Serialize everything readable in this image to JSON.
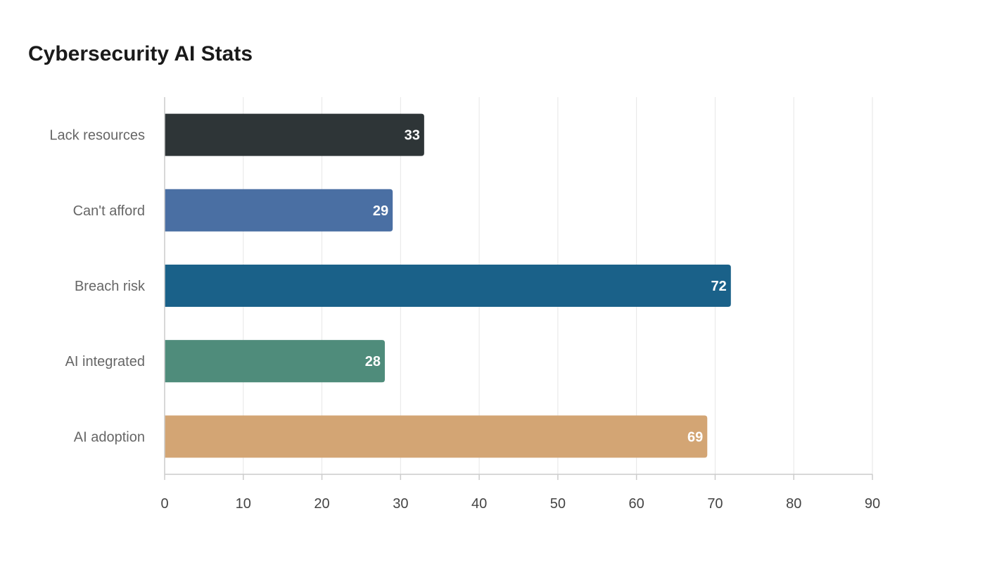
{
  "chart_data": {
    "type": "bar",
    "orientation": "horizontal",
    "title": "Cybersecurity AI Stats",
    "xlabel": "",
    "ylabel": "",
    "categories": [
      "Lack resources",
      "Can't afford",
      "Breach risk",
      "AI integrated",
      "AI adoption"
    ],
    "values": [
      33,
      29,
      72,
      28,
      69
    ],
    "colors": [
      "#2e3537",
      "#4a6fa3",
      "#1a6189",
      "#4f8c7b",
      "#d3a574"
    ],
    "xlim": [
      0,
      90
    ],
    "ticks": [
      0,
      10,
      20,
      30,
      40,
      50,
      60,
      70,
      80,
      90
    ],
    "grid": true,
    "legend": "none"
  }
}
